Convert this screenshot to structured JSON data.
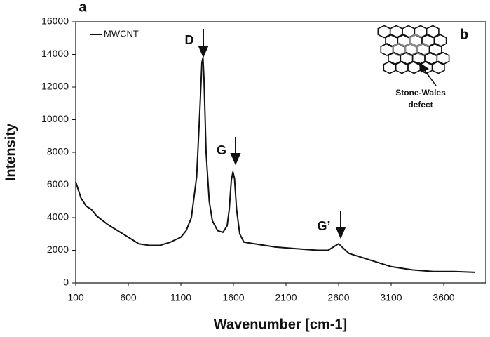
{
  "chart_data": {
    "type": "line",
    "x_label": "Wavenumber [cm-1]",
    "y_label": "Intensity",
    "x": [
      100,
      150,
      200,
      250,
      300,
      400,
      500,
      600,
      700,
      800,
      900,
      1000,
      1100,
      1150,
      1200,
      1250,
      1280,
      1300,
      1310,
      1320,
      1340,
      1370,
      1400,
      1450,
      1500,
      1540,
      1560,
      1580,
      1595,
      1610,
      1630,
      1660,
      1700,
      1800,
      2000,
      2200,
      2400,
      2500,
      2550,
      2600,
      2650,
      2700,
      2900,
      3100,
      3300,
      3500,
      3700,
      3900
    ],
    "series": [
      {
        "name": "MWCNT",
        "color": "#111111",
        "values": [
          6200,
          5200,
          4700,
          4500,
          4100,
          3600,
          3200,
          2800,
          2400,
          2300,
          2300,
          2500,
          2800,
          3200,
          4000,
          6500,
          10500,
          13500,
          13800,
          12500,
          8000,
          5000,
          3800,
          3200,
          3100,
          3500,
          4500,
          6300,
          6800,
          6400,
          4500,
          3000,
          2500,
          2400,
          2200,
          2100,
          2000,
          2000,
          2200,
          2400,
          2100,
          1800,
          1400,
          1000,
          800,
          700,
          700,
          650
        ]
      }
    ],
    "xlim": [
      100,
      4000
    ],
    "xticks": [
      100,
      600,
      1100,
      1600,
      2100,
      2600,
      3100,
      3600
    ],
    "ylim": [
      0,
      16000
    ],
    "yticks": [
      0,
      2000,
      4000,
      6000,
      8000,
      10000,
      12000,
      14000,
      16000
    ],
    "legend": "upper left",
    "annotations": [
      "a",
      "b",
      "D",
      "G",
      "G’",
      "Stone-Wales",
      "defect"
    ]
  }
}
